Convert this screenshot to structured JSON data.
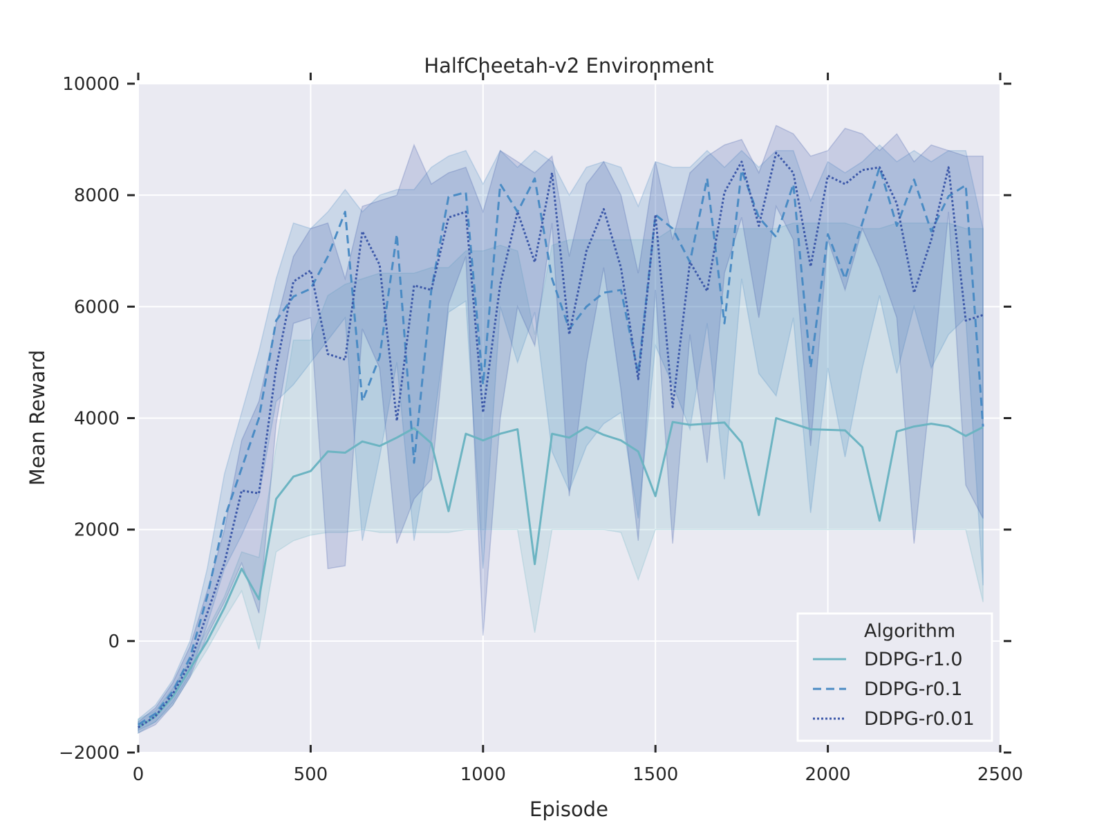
{
  "chart_data": {
    "type": "line",
    "title": "HalfCheetah-v2 Environment",
    "xlabel": "Episode",
    "ylabel": "Mean Reward",
    "xlim": [
      0,
      2500
    ],
    "ylim": [
      -2000,
      10000
    ],
    "xticks": [
      0,
      500,
      1000,
      1500,
      2000,
      2500
    ],
    "yticks": [
      -2000,
      0,
      2000,
      4000,
      6000,
      8000,
      10000
    ],
    "xtick_labels": [
      "0",
      "500",
      "1000",
      "1500",
      "2000",
      "2500"
    ],
    "ytick_labels": [
      "−2000",
      "0",
      "2000",
      "4000",
      "6000",
      "8000",
      "10000"
    ],
    "grid": true,
    "legend": {
      "title": "Algorithm",
      "position": "lower-right"
    },
    "background_color": "#EAEAF2",
    "x": [
      0,
      50,
      100,
      150,
      200,
      250,
      300,
      350,
      400,
      450,
      500,
      550,
      600,
      650,
      700,
      750,
      800,
      850,
      900,
      950,
      1000,
      1050,
      1100,
      1150,
      1200,
      1250,
      1300,
      1350,
      1400,
      1450,
      1500,
      1550,
      1600,
      1650,
      1700,
      1750,
      1800,
      1850,
      1900,
      1950,
      2000,
      2050,
      2100,
      2150,
      2200,
      2250,
      2300,
      2350,
      2400,
      2450
    ],
    "series": [
      {
        "name": "DDPG-r1.0",
        "color": "#6CB4C2",
        "dash": "solid",
        "values": [
          -1550,
          -1350,
          -1000,
          -500,
          0,
          600,
          1300,
          750,
          2550,
          2950,
          3050,
          3400,
          3380,
          3580,
          3500,
          3650,
          3820,
          3550,
          2330,
          3720,
          3600,
          3720,
          3800,
          1380,
          3720,
          3650,
          3840,
          3700,
          3600,
          3400,
          2600,
          3930,
          3880,
          3900,
          3920,
          3560,
          2260,
          4000,
          3900,
          3800,
          3790,
          3780,
          3480,
          2160,
          3760,
          3850,
          3900,
          3850,
          3680,
          3840
        ],
        "lower": [
          -1650,
          -1450,
          -1150,
          -650,
          -150,
          400,
          900,
          -150,
          1600,
          1800,
          1900,
          1950,
          1950,
          2000,
          1950,
          1950,
          1950,
          1950,
          1950,
          2000,
          2000,
          2000,
          2000,
          150,
          2000,
          2000,
          2000,
          2000,
          1950,
          1100,
          2000,
          2000,
          2000,
          2000,
          2000,
          2000,
          2000,
          2000,
          2000,
          2000,
          2000,
          2000,
          2000,
          2000,
          2000,
          2000,
          2000,
          2000,
          2000,
          700
        ],
        "upper": [
          -1400,
          -1250,
          -850,
          -350,
          200,
          800,
          1600,
          1500,
          3500,
          5400,
          5400,
          6200,
          6400,
          6500,
          6600,
          6600,
          6600,
          6700,
          6700,
          7000,
          7000,
          7100,
          7000,
          5500,
          7100,
          7200,
          7200,
          7200,
          7200,
          7200,
          7200,
          7400,
          7400,
          7400,
          7400,
          7400,
          7400,
          7400,
          7500,
          7500,
          7500,
          7500,
          7400,
          7400,
          7500,
          7500,
          7500,
          7500,
          7400,
          7400
        ]
      },
      {
        "name": "DDPG-r0.1",
        "color": "#4A8BC4",
        "dash": "dashed",
        "values": [
          -1500,
          -1300,
          -900,
          -300,
          800,
          2200,
          3100,
          4000,
          5750,
          6180,
          6320,
          6900,
          7700,
          4300,
          5100,
          7300,
          3200,
          6300,
          7970,
          8050,
          4600,
          8200,
          7700,
          8300,
          6500,
          5600,
          6000,
          6250,
          6300,
          4800,
          7650,
          7400,
          6800,
          8300,
          5700,
          8450,
          7600,
          7250,
          8200,
          4900,
          7300,
          6500,
          7500,
          8500,
          7450,
          8280,
          7350,
          7980,
          8180,
          3850
        ],
        "lower": [
          -1600,
          -1450,
          -1100,
          -600,
          300,
          1300,
          1900,
          2600,
          4300,
          4600,
          5000,
          5400,
          5800,
          1800,
          3300,
          5000,
          1800,
          3600,
          5900,
          6100,
          1300,
          6000,
          5000,
          5900,
          3400,
          2700,
          3500,
          3900,
          4100,
          2200,
          5300,
          4600,
          3800,
          5700,
          2900,
          6500,
          4800,
          4400,
          5800,
          2300,
          4900,
          3300,
          4900,
          6200,
          4800,
          6000,
          4900,
          5500,
          5800,
          1000
        ],
        "upper": [
          -1400,
          -1150,
          -700,
          0,
          1300,
          3000,
          4100,
          5200,
          6500,
          7500,
          7400,
          7700,
          8100,
          7700,
          8000,
          8100,
          8100,
          8500,
          8700,
          8800,
          8200,
          8800,
          8500,
          8800,
          8600,
          8000,
          8500,
          8600,
          8500,
          7800,
          8600,
          8500,
          8500,
          8800,
          8500,
          8800,
          8500,
          8800,
          8800,
          7900,
          8600,
          8400,
          8600,
          8900,
          8600,
          8800,
          8600,
          8800,
          8800,
          7400
        ]
      },
      {
        "name": "DDPG-r0.01",
        "color": "#3B57A8",
        "dash": "dotted",
        "values": [
          -1550,
          -1350,
          -950,
          -400,
          500,
          1400,
          2700,
          2650,
          4900,
          6450,
          6650,
          5150,
          5050,
          7350,
          6750,
          3950,
          6380,
          6300,
          7600,
          7700,
          4100,
          6400,
          7700,
          6800,
          8400,
          5500,
          7000,
          7750,
          6700,
          4700,
          7650,
          4200,
          6800,
          6280,
          8050,
          8600,
          7450,
          8760,
          8400,
          6720,
          8350,
          8200,
          8450,
          8500,
          7850,
          6250,
          7200,
          8500,
          5750,
          5850
        ],
        "lower": [
          -1650,
          -1500,
          -1150,
          -650,
          100,
          700,
          1400,
          500,
          3900,
          5700,
          5800,
          1300,
          1350,
          5600,
          4900,
          1750,
          2550,
          2900,
          6050,
          6900,
          100,
          4000,
          6000,
          5300,
          7500,
          2600,
          5000,
          6700,
          4500,
          1800,
          6300,
          1750,
          5500,
          3200,
          6600,
          7600,
          5800,
          7800,
          7200,
          3500,
          7200,
          6300,
          7400,
          6700,
          5800,
          1750,
          4600,
          7700,
          2800,
          2200
        ],
        "upper": [
          -1450,
          -1200,
          -750,
          -100,
          900,
          2000,
          3600,
          4300,
          5700,
          6900,
          7400,
          7500,
          6500,
          7800,
          7900,
          8000,
          8900,
          8200,
          8400,
          8500,
          7700,
          8800,
          8600,
          8400,
          8700,
          6900,
          8200,
          8600,
          8000,
          6600,
          8600,
          7200,
          8400,
          8700,
          8900,
          9000,
          8400,
          9250,
          9100,
          8700,
          8800,
          9200,
          9100,
          8800,
          9100,
          8600,
          8900,
          8800,
          8700,
          8700
        ]
      }
    ]
  }
}
